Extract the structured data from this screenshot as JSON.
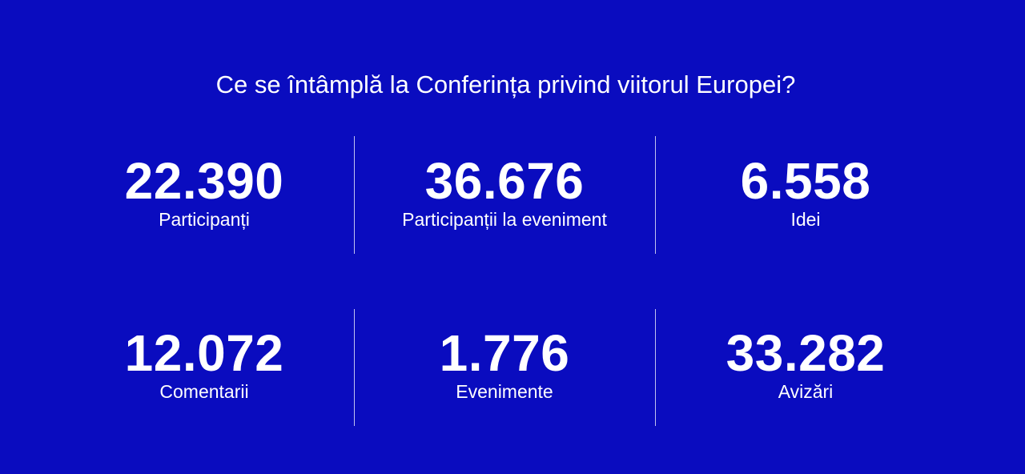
{
  "heading": "Ce se întâmplă la Conferința privind viitorul Europei?",
  "stats": [
    {
      "value": "22.390",
      "label": "Participanți"
    },
    {
      "value": "36.676",
      "label": "Participanții la eveniment"
    },
    {
      "value": "6.558",
      "label": "Idei"
    },
    {
      "value": "12.072",
      "label": "Comentarii"
    },
    {
      "value": "1.776",
      "label": "Evenimente"
    },
    {
      "value": "33.282",
      "label": "Avizări"
    }
  ],
  "colors": {
    "background": "#0a0cbf",
    "text": "#ffffff",
    "divider": "#ffffff"
  }
}
